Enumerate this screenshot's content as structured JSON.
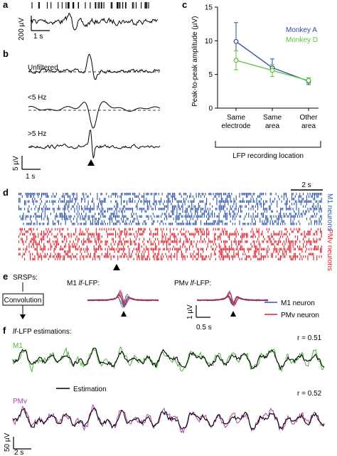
{
  "panels": {
    "a": {
      "letter": "a",
      "scale_y": "200 µV",
      "scale_x": "1 s"
    },
    "b": {
      "letter": "b",
      "unfiltered": "Unfiltered",
      "low": "<5 Hz",
      "high": ">5 Hz",
      "scale_y": "5 µV",
      "scale_x": "1 s"
    },
    "c": {
      "letter": "c"
    },
    "d": {
      "letter": "d",
      "scale_x": "2 s",
      "m1_label": "M1 neurons",
      "pmv_label": "PMv neurons"
    },
    "e": {
      "letter": "e",
      "srsps": "SRSPs:",
      "convolution": "Convolution",
      "m1_title_pre": "M1 ",
      "m1_title_lf": "lf",
      "m1_title_post": "-LFP:",
      "pmv_title_pre": "PMv ",
      "pmv_title_lf": "lf",
      "pmv_title_post": "-LFP:",
      "scale_y": "1 µV",
      "scale_x": "0.5 s",
      "legend": [
        "M1 neuron",
        "PMv neuron"
      ]
    },
    "f": {
      "letter": "f",
      "title_lf": "lf",
      "title_rest": "-LFP estimations:",
      "m1": "M1",
      "pmv": "PMv",
      "estimation": "Estimation",
      "r1": "r = 0.51",
      "r2": "r = 0.52",
      "scale_y": "50 µV",
      "scale_x": "2 s"
    }
  },
  "colors": {
    "m1": "#2f56a8",
    "pmv": "#e0202a",
    "monkeyA": "#2a4fa0",
    "monkeyD": "#5cc23c",
    "m1_trace": "#4cb83a",
    "pmv_trace": "#b040b0"
  },
  "chart_data": {
    "type": "line",
    "ylabel": "Peak-to-peak amplitude (µV)",
    "xlabel": "LFP recording location",
    "categories": [
      "Same electrode",
      "Same area",
      "Other area"
    ],
    "ylim": [
      0,
      15
    ],
    "yticks": [
      0,
      5,
      10,
      15
    ],
    "legend_position": "top-right",
    "series": [
      {
        "name": "Monkey A",
        "color": "#2a4fa0",
        "values": [
          9.9,
          6.0,
          4.0
        ],
        "errors": [
          2.8,
          1.3,
          0.5
        ]
      },
      {
        "name": "Monkey D",
        "color": "#5cc23c",
        "values": [
          7.1,
          5.6,
          4.1
        ],
        "errors": [
          1.4,
          0.9,
          0.4
        ]
      }
    ]
  }
}
